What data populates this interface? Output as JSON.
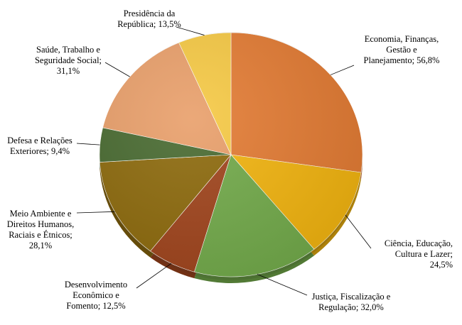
{
  "chart_data": {
    "type": "pie",
    "start": "top, clockwise",
    "slices": [
      {
        "label": "Economia, Finanças,\nGestão e\nPlanejamento; 56,8%",
        "value": 56.8,
        "color": "#E37B33"
      },
      {
        "label": "Ciência, Educação,\nCultura e Lazer;\n24,5%",
        "value": 24.5,
        "color": "#F2B40F"
      },
      {
        "label": "Justiça, Fiscalização e\nRegulação; 32,0%",
        "value": 32.0,
        "color": "#72AA4A"
      },
      {
        "label": "Desenvolvimento\nEconômico e\nFomento; 12,5%",
        "value": 12.5,
        "color": "#A0441C"
      },
      {
        "label": "Meio Ambiente e\nDireitos Humanos,\nRaciais e Étnicos;\n28,1%",
        "value": 28.1,
        "color": "#8D6A0C"
      },
      {
        "label": "Defesa e Relações\nExteriores; 9,4%",
        "value": 9.4,
        "color": "#486A30"
      },
      {
        "label": "Saúde, Trabalho e\nSeguridade Social;\n31,1%",
        "value": 31.1,
        "color": "#E99F6A"
      },
      {
        "label": "Presidência da\nRepública; 13,5%",
        "value": 13.5,
        "color": "#F6C944"
      }
    ]
  }
}
